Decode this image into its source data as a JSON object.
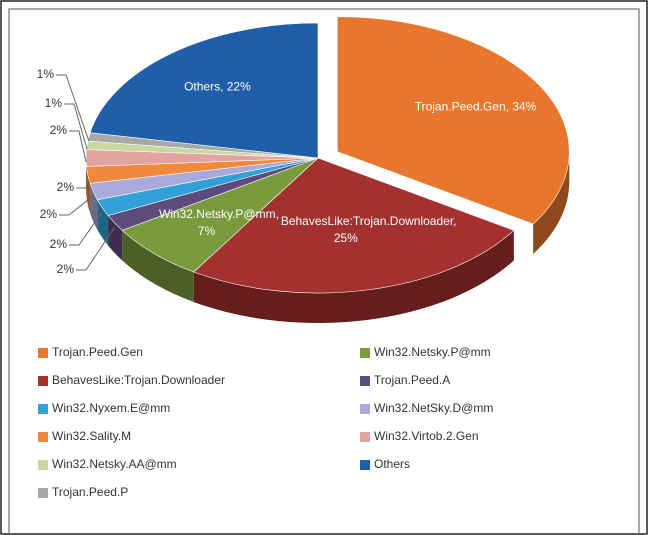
{
  "chart_data": {
    "type": "pie",
    "categories": [
      "Trojan.Peed.Gen",
      "BehavesLike:Trojan.Downloader",
      "Win32.Netsky.P@mm",
      "Trojan.Peed.A",
      "Win32.Nyxem.E@mm",
      "Win32.NetSky.D@mm",
      "Win32.Sality.M",
      "Win32.Virtob.2.Gen",
      "Win32.Netsky.AA@mm",
      "Trojan.Peed.P",
      "Others"
    ],
    "values": [
      34,
      25,
      7,
      2,
      2,
      2,
      2,
      2,
      1,
      1,
      22
    ],
    "value_labels": [
      "Trojan.Peed.Gen, 34%",
      "BehavesLike:Trojan.Downloader, 25%",
      "Win32.Netsky.P@mm, 7%",
      "2%",
      "2%",
      "2%",
      "2%",
      "2%",
      "1%",
      "1%",
      "Others, 22%"
    ],
    "colors": [
      "#e8762d",
      "#a3312f",
      "#7a9a3e",
      "#5f4a7d",
      "#31a2d8",
      "#a9a9dc",
      "#f0893c",
      "#e3a3a1",
      "#c6d9a0",
      "#a8a8a8",
      "#1f5ea8"
    ],
    "legend": true
  }
}
